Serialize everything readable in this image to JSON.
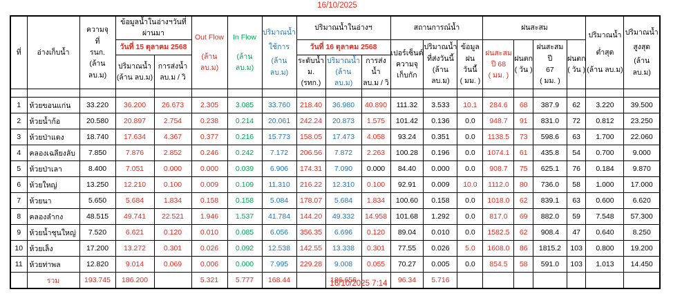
{
  "page": {
    "top_date": "16/10/2025",
    "bottom_timestamp": "16/10/2025 7:14"
  },
  "colors": {
    "red": "#E32A1E",
    "green": "#00A651",
    "blue": "#1E74BC"
  },
  "header": {
    "no": "ที่",
    "reservoir": "อ่างเก็บน้ำ",
    "capacity_lines": [
      "ความจุ",
      "ที่",
      "รนก.",
      "(ล้าน ลบ.ม)"
    ],
    "prev_group": "ข้อมูลน้ำในอ่างฯวันที่ผ่านมา",
    "prev_date": "วันที่ 15 ตุลาคม 2568",
    "prev_volume_lines": [
      "ปริมาณน้ำ",
      "(ล้าน ลบ.ม)"
    ],
    "prev_discharge_lines": [
      "การส่งน้ำ",
      "ลบ.ม / วิ"
    ],
    "outflow_lines": [
      "Out Flow",
      "(ล้าน ลบ.ม)"
    ],
    "inflow_lines": [
      "In Flow",
      "(ล้าน ลบ.ม)"
    ],
    "usable_lines": [
      "ปริมาณน้ำ",
      "ใช้การ",
      "(ล้าน ลบ.ม)"
    ],
    "current_group": "ปริมาณน้ำในอ่างฯ",
    "current_date": "วันที่ 16 ตุลาคม 2568",
    "level_lines": [
      "ระดับน้ำ",
      "ม. (รทก.)"
    ],
    "current_volume_lines": [
      "ปริมาณน้ำ",
      "(ล้าน ลบ.ม)"
    ],
    "current_discharge_lines": [
      "การส่งน้ำ",
      "ลบ.ม / วิ"
    ],
    "situation_group": "สถานการณ์น้ำ",
    "percent_lines": [
      "เปอร์เซ็นต์",
      "ความจุ",
      "เก็บกัก"
    ],
    "sent_today_lines": [
      "ปริมาณน้ำ",
      "ที่ส่งวันนี้",
      "(ล้าน ลบ.ม)"
    ],
    "rain_today_lines": [
      "ข้อมูลฝน",
      "วันนี้",
      "( มม. )"
    ],
    "rain_group": "ฝนสะสม",
    "rain68_lines": [
      "ฝนสะสม",
      "ปี 68",
      "( มม. )"
    ],
    "raindays68_lines": [
      "ฝนตก",
      "( วัน )"
    ],
    "rain67_lines": [
      "ฝนสะสม ปี",
      "67",
      "( มม. )"
    ],
    "raindays67_lines": [
      "ฝนตก",
      "( วัน )"
    ],
    "min_lines": [
      "ปริมาณน้ำ",
      "ต่ำสุด",
      "(ล้าน ลบ.ม)"
    ],
    "max_lines": [
      "ปริมาณน้ำ",
      "สูงสุด",
      "(ล้าน ลบ.ม)"
    ]
  },
  "column_colors": [
    "black",
    "black",
    "black",
    "red",
    "red",
    "red",
    "green",
    "blue",
    "red",
    "blue",
    "red-unless-zero",
    "black",
    "black",
    "red-if-nonzero",
    "red",
    "red",
    "black",
    "black",
    "black",
    "black"
  ],
  "rows": [
    {
      "cells": [
        "1",
        "ห้วยขอนแก่น",
        "33.220",
        "36.200",
        "26.673",
        "2.305",
        "3.085",
        "33.760",
        "218.40",
        "36.980",
        "40.890",
        "111.32",
        "3.533",
        "10.1",
        "284.6",
        "68",
        "387.9",
        "62",
        "3.220",
        "39.500"
      ]
    },
    {
      "cells": [
        "2",
        "ห้วยน้ำก้อ",
        "20.580",
        "20.897",
        "2.754",
        "0.238",
        "0.214",
        "20.061",
        "242.24",
        "20.873",
        "1.575",
        "101.42",
        "0.136",
        "0.0",
        "948.7",
        "91",
        "831.0",
        "72",
        "0.812",
        "23.250"
      ]
    },
    {
      "cells": [
        "3",
        "ห้วยป่าแดง",
        "18.740",
        "17.634",
        "4.367",
        "0.377",
        "0.216",
        "15.773",
        "158.05",
        "17.473",
        "4.058",
        "93.24",
        "0.351",
        "0.0",
        "1138.5",
        "73",
        "598.6",
        "63",
        "1.700",
        "22.060"
      ]
    },
    {
      "cells": [
        "4",
        "คลองเฉลียงลับ",
        "7.850",
        "7.876",
        "2.852",
        "0.246",
        "0.242",
        "7.172",
        "206.56",
        "7.872",
        "2.263",
        "100.28",
        "0.196",
        "0.0",
        "1074.1",
        "61",
        "435.8",
        "54",
        "0.700",
        "9.000"
      ]
    },
    {
      "cells": [
        "5",
        "ห้วยป่าเลา",
        "8.400",
        "7.051",
        "0.000",
        "0.000",
        "0.039",
        "6.906",
        "174.31",
        "7.090",
        "0.000",
        "84.40",
        "0.000",
        "0.0",
        "908.7",
        "75",
        "625.1",
        "76",
        "0.184",
        "9.870"
      ]
    },
    {
      "cells": [
        "6",
        "ห้วยใหญ่",
        "13.250",
        "12.210",
        "0.100",
        "0.009",
        "0.109",
        "11.310",
        "216.22",
        "12.310",
        "0.100",
        "92.91",
        "0.009",
        "10.0",
        "1112.0",
        "80",
        "736.0",
        "58",
        "1.000",
        "17.000"
      ]
    },
    {
      "cells": [
        "7",
        "ห้วยนา",
        "5.650",
        "5.684",
        "1.834",
        "0.158",
        "0.158",
        "5.084",
        "178.07",
        "5.684",
        "1.834",
        "100.60",
        "0.158",
        "0.0",
        "1018.0",
        "62",
        "839.1",
        "63",
        "0.600",
        "6.620"
      ]
    },
    {
      "cells": [
        "8",
        "คลองลำกง",
        "48.515",
        "49.741",
        "22.521",
        "1.946",
        "1.537",
        "41.784",
        "144.20",
        "49.332",
        "14.958",
        "101.68",
        "1.292",
        "0.0",
        "817.0",
        "69",
        "882.0",
        "59",
        "7.548",
        "57.300"
      ]
    },
    {
      "cells": [
        "9",
        "ห้วยน้ำชุนใหญ่",
        "7.520",
        "6.621",
        "0.120",
        "0.010",
        "0.085",
        "6.056",
        "356.35",
        "6.696",
        "0.120",
        "89.04",
        "0.010",
        "0.0",
        "1582.5",
        "62",
        "908.4",
        "47",
        "0.640",
        "8.250"
      ]
    },
    {
      "cells": [
        "10",
        "ห้วยเล็ง",
        "17.200",
        "13.272",
        "0.301",
        "0.026",
        "0.092",
        "12.538",
        "142.55",
        "13.338",
        "0.301",
        "77.55",
        "0.026",
        "5.0",
        "1608.0",
        "86",
        "1815.2",
        "103",
        "0.800",
        "19.200"
      ]
    },
    {
      "cells": [
        "11",
        "ห้วยท่าพล",
        "12.820",
        "9.014",
        "0.069",
        "0.006",
        "0.000",
        "7.995",
        "229.28",
        "9.008",
        "0.055",
        "70.27",
        "0.005",
        "0.0",
        "854.5",
        "58",
        "591.0",
        "103",
        "1.013",
        "14.450"
      ]
    }
  ],
  "total": {
    "cells": [
      "",
      "รวม",
      "193.745",
      "186.200",
      "",
      "5.321",
      "5.777",
      "168.44",
      "",
      "186.656",
      "",
      "96.34",
      "5.716",
      "",
      "",
      "",
      "",
      "",
      "",
      ""
    ]
  }
}
